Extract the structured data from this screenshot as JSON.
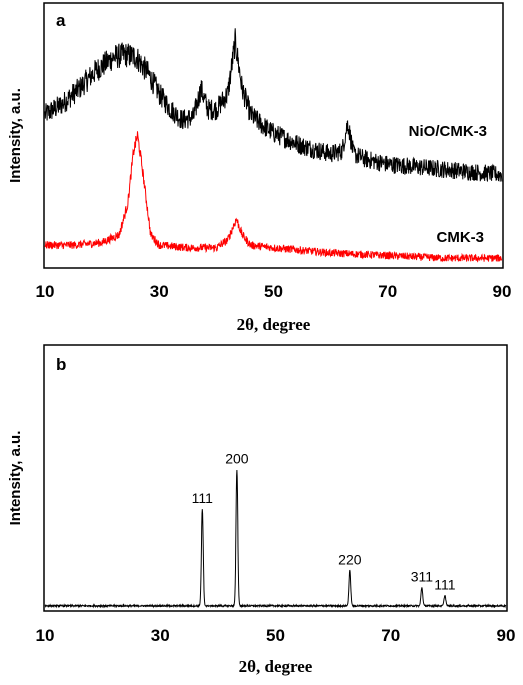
{
  "chart_data": [
    {
      "panel": "a",
      "type": "line",
      "xlabel": "2θ, degree",
      "ylabel": "Intensity, a.u.",
      "xlim": [
        10,
        90
      ],
      "xticks": [
        10,
        30,
        50,
        70,
        90
      ],
      "series": [
        {
          "name": "NiO/CMK-3",
          "color": "#000000",
          "x": [
            10,
            13,
            16,
            19,
            22,
            24,
            26,
            28,
            30,
            32,
            34,
            36,
            37.3,
            38.5,
            40,
            42,
            43.3,
            44.5,
            46,
            48,
            50,
            55,
            60,
            62,
            63,
            64,
            66,
            70,
            75,
            80,
            85,
            90
          ],
          "y": [
            0.58,
            0.62,
            0.68,
            0.75,
            0.8,
            0.81,
            0.8,
            0.74,
            0.66,
            0.6,
            0.56,
            0.57,
            0.68,
            0.6,
            0.6,
            0.66,
            0.86,
            0.68,
            0.58,
            0.54,
            0.51,
            0.46,
            0.43,
            0.44,
            0.55,
            0.43,
            0.41,
            0.39,
            0.38,
            0.37,
            0.36,
            0.35
          ]
        },
        {
          "name": "CMK-3",
          "color": "#ff0000",
          "x": [
            10,
            15,
            20,
            23,
            24.5,
            25.5,
            26.2,
            27,
            28.5,
            30,
            35,
            40,
            42,
            43.5,
            44.5,
            46,
            50,
            55,
            60,
            70,
            80,
            90
          ],
          "y": [
            0.08,
            0.08,
            0.09,
            0.12,
            0.24,
            0.44,
            0.5,
            0.38,
            0.12,
            0.08,
            0.07,
            0.07,
            0.1,
            0.18,
            0.12,
            0.08,
            0.07,
            0.06,
            0.05,
            0.04,
            0.03,
            0.03
          ]
        }
      ]
    },
    {
      "panel": "b",
      "type": "line",
      "xlabel": "2θ, degree",
      "ylabel": "Intensity, a.u.",
      "xlim": [
        10,
        90
      ],
      "xticks": [
        10,
        30,
        50,
        70,
        90
      ],
      "series": [
        {
          "color": "#000000",
          "peaks": [
            {
              "x": 37.3,
              "y": 0.37,
              "label": "111"
            },
            {
              "x": 43.3,
              "y": 0.52,
              "label": "200"
            },
            {
              "x": 62.9,
              "y": 0.135,
              "label": "220"
            },
            {
              "x": 75.4,
              "y": 0.07,
              "label": "311"
            },
            {
              "x": 79.4,
              "y": 0.04,
              "label": "111"
            }
          ]
        }
      ]
    }
  ]
}
